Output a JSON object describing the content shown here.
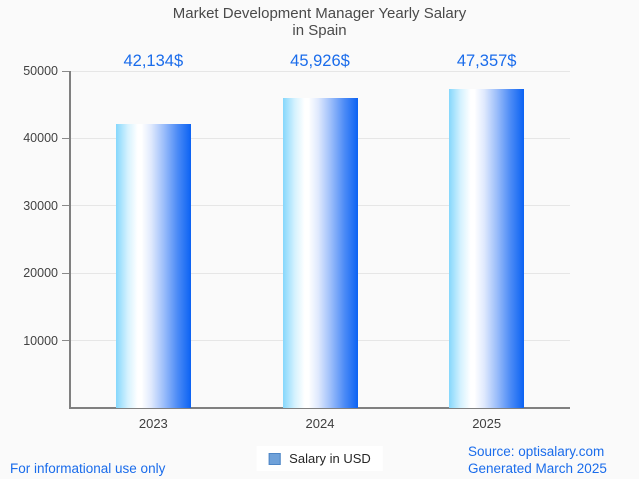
{
  "header": {
    "title_line1": "Market Development Manager Yearly Salary",
    "title_line2": "in Spain"
  },
  "chart_data": {
    "type": "bar",
    "title": "Market Development Manager Yearly Salary in Spain",
    "categories": [
      "2023",
      "2024",
      "2025"
    ],
    "series": [
      {
        "name": "Salary in USD",
        "values": [
          42134,
          45926,
          47357
        ]
      }
    ],
    "value_labels": [
      "42,134$",
      "45,926$",
      "47,357$"
    ],
    "ylim": [
      0,
      50000
    ],
    "yticks": [
      10000,
      20000,
      30000,
      40000,
      50000
    ],
    "grid": true,
    "legend_position": "bottom",
    "bar_gradient": [
      "#85d7fc",
      "#ffffff",
      "#0b62f3"
    ],
    "value_label_color": "#1a6ceb",
    "axis_color": "#808080",
    "gridline_color": "#e6e6e6",
    "tick_label_color": "#424242"
  },
  "legend": {
    "label": "Salary in USD",
    "marker_fill": "#6fa1d9",
    "marker_border": "#4e86c6"
  },
  "footer": {
    "left": "For informational use only",
    "source": "Source: optisalary.com",
    "generated": "Generated March 2025",
    "link_color": "#1a6ceb"
  }
}
